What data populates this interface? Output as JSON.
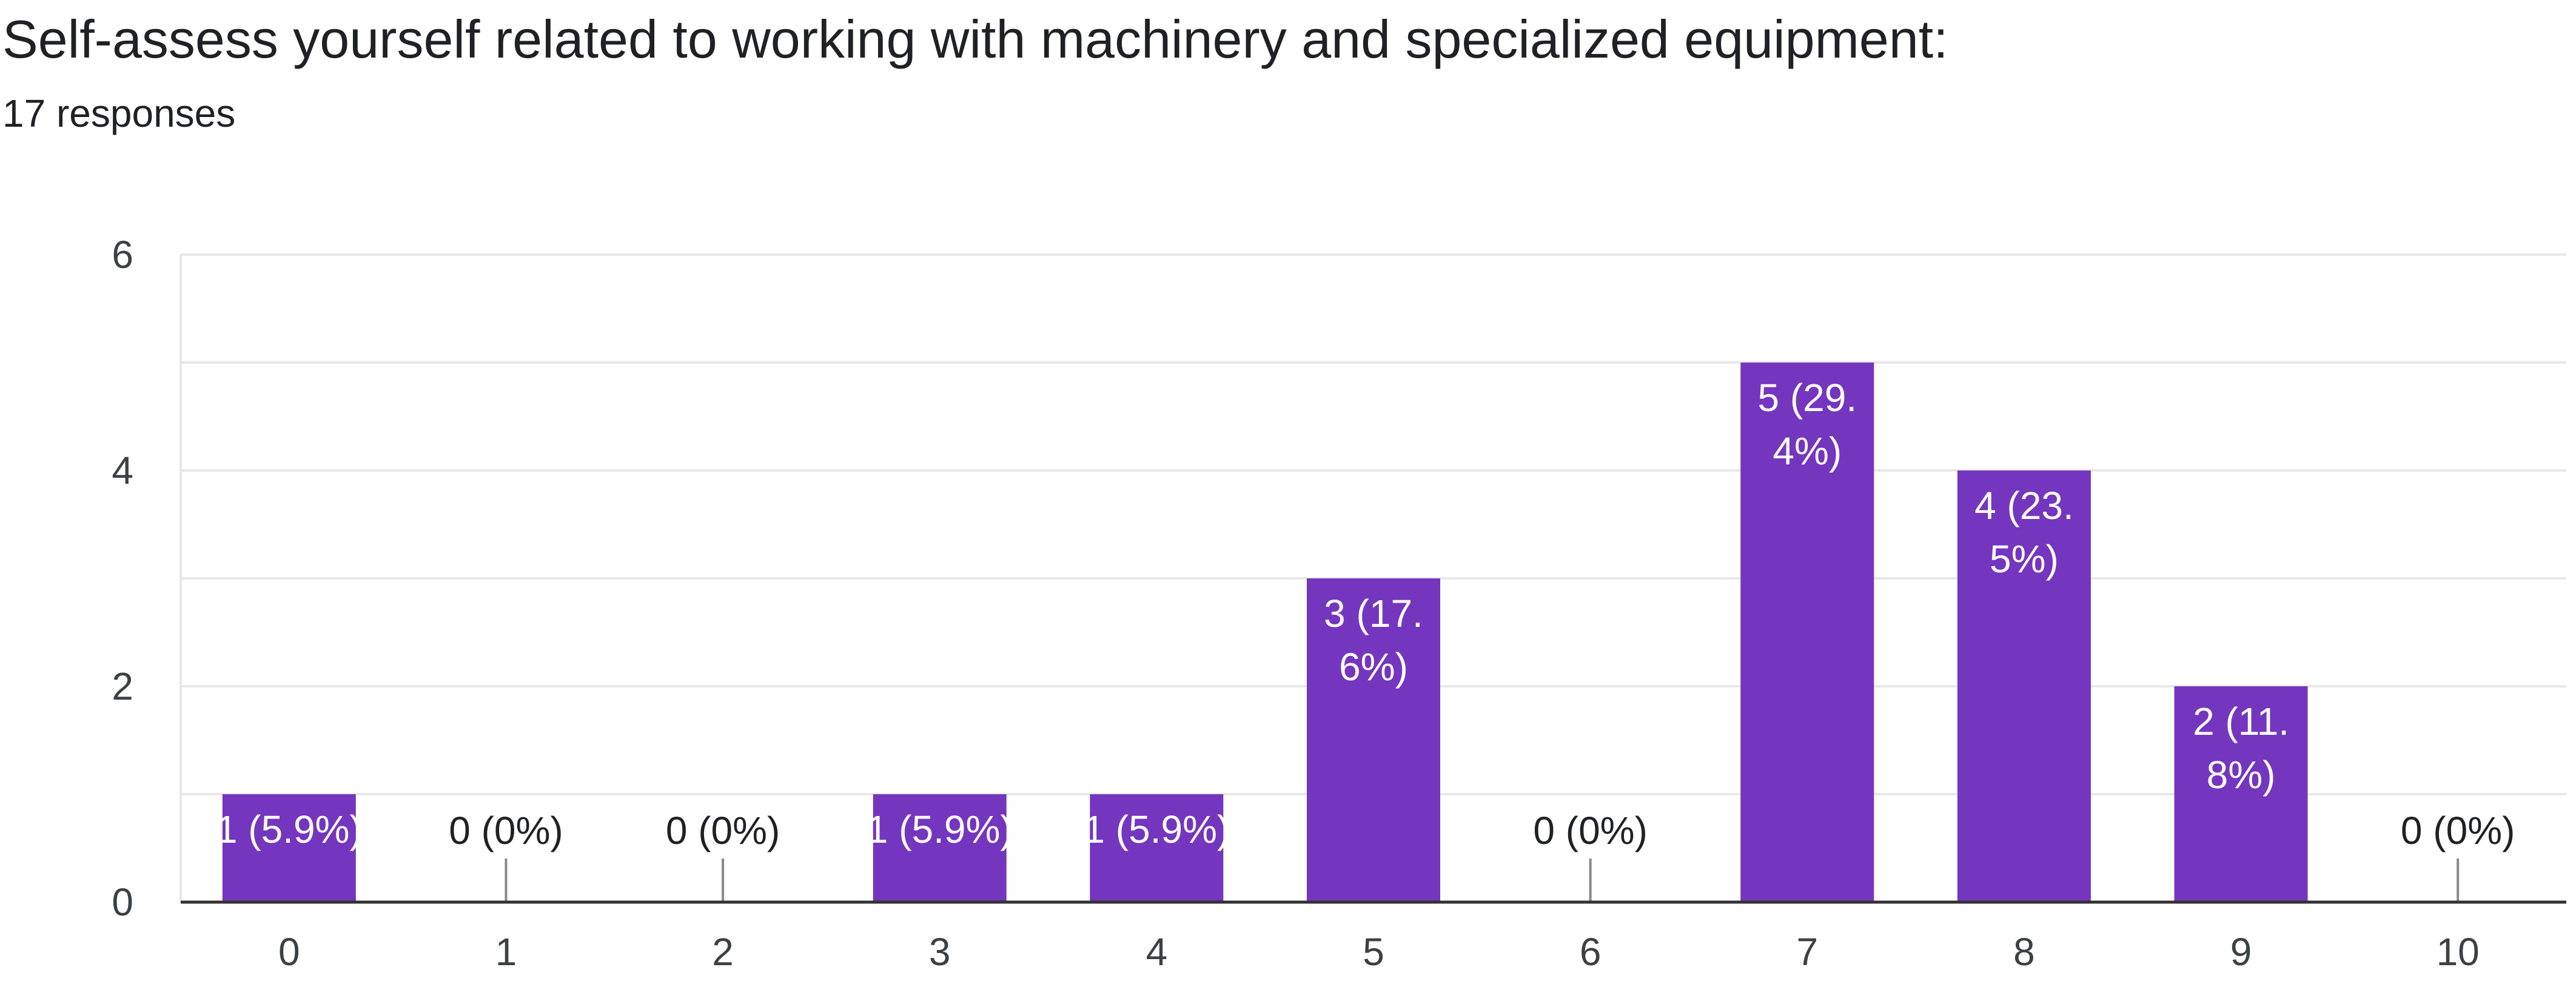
{
  "header": {
    "title": "Self-assess yourself related to  working with machinery and specialized equipment:",
    "responses": "17 responses"
  },
  "colors": {
    "bar": "#7436bf",
    "grid": "#e8e8e8",
    "axis": "#333333",
    "leader": "#8a8a8a"
  },
  "chart_data": {
    "type": "bar",
    "title": "Self-assess yourself related to  working with machinery and specialized equipment:",
    "subtitle": "17 responses",
    "categories": [
      "0",
      "1",
      "2",
      "3",
      "4",
      "5",
      "6",
      "7",
      "8",
      "9",
      "10"
    ],
    "values": [
      1,
      0,
      0,
      1,
      1,
      3,
      0,
      5,
      4,
      2,
      0
    ],
    "data_labels": [
      [
        "1 (5.9%)"
      ],
      [
        "0 (0%)"
      ],
      [
        "0 (0%)"
      ],
      [
        "1 (5.9%)"
      ],
      [
        "1 (5.9%)"
      ],
      [
        "3 (17.",
        "6%)"
      ],
      [
        "0 (0%)"
      ],
      [
        "5 (29.",
        "4%)"
      ],
      [
        "4 (23.",
        "5%)"
      ],
      [
        "2 (11.",
        "8%)"
      ],
      [
        "0 (0%)"
      ]
    ],
    "ylim": [
      0,
      6
    ],
    "yticks": [
      "0",
      "2",
      "4",
      "6"
    ],
    "grid": true,
    "xlabel": "",
    "ylabel": ""
  }
}
